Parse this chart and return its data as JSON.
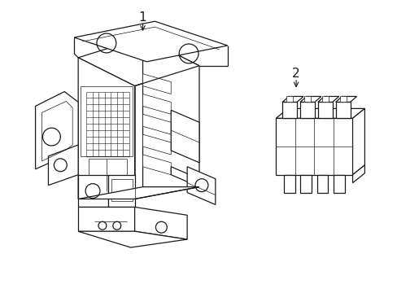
{
  "bg_color": "#ffffff",
  "line_color": "#1a1a1a",
  "line_width": 0.9,
  "thin_lw": 0.5,
  "label1": "1",
  "label2": "2",
  "figsize": [
    4.89,
    3.6
  ],
  "dpi": 100
}
